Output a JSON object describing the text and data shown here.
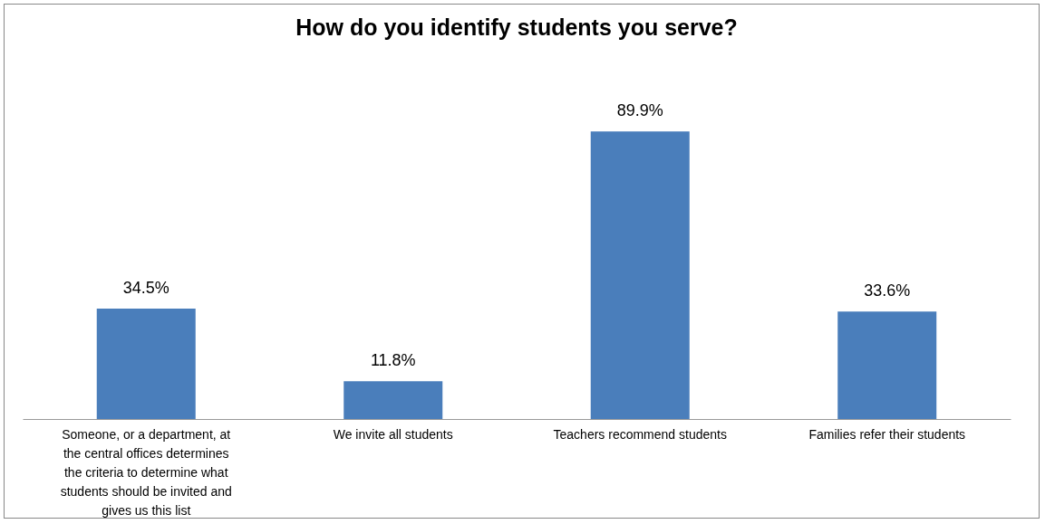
{
  "chart_data": {
    "type": "bar",
    "title": "How do you identify students you serve?",
    "categories": [
      "Someone, or a department, at the central offices determines the criteria to determine what students should be invited and gives us this list",
      "We invite all students",
      "Teachers recommend students",
      "Families refer their students"
    ],
    "values": [
      34.5,
      11.8,
      89.9,
      33.6
    ],
    "value_labels": [
      "34.5%",
      "11.8%",
      "89.9%",
      "33.6%"
    ],
    "color": "#4a7ebb"
  }
}
